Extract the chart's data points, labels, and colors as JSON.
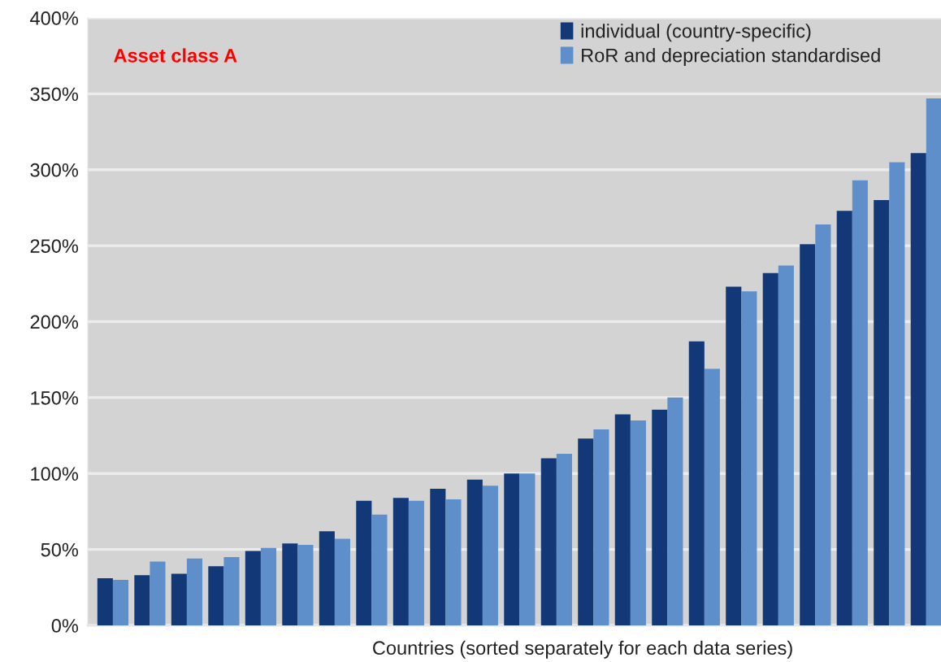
{
  "chart_data": {
    "type": "bar",
    "title": "Asset class A",
    "xlabel": "Countries (sorted separately for each data series)",
    "categories": [
      null,
      null,
      null,
      null,
      null,
      null,
      null,
      null,
      null,
      null,
      null,
      null,
      null,
      null,
      null,
      null,
      null,
      null,
      null,
      null,
      null,
      null,
      null
    ],
    "series": [
      {
        "name": "individual (country-specific)",
        "color": "#123878",
        "values": [
          31,
          33,
          34,
          39,
          49,
          54,
          62,
          82,
          84,
          90,
          96,
          100,
          110,
          123,
          139,
          142,
          187,
          223,
          232,
          251,
          273,
          280,
          311
        ]
      },
      {
        "name": "RoR and depreciation standardised",
        "color": "#5f8fca",
        "values": [
          30,
          42,
          44,
          45,
          51,
          53,
          57,
          73,
          82,
          83,
          92,
          100,
          113,
          129,
          135,
          150,
          169,
          220,
          237,
          264,
          293,
          305,
          347
        ]
      }
    ],
    "ylim": [
      0,
      400
    ],
    "yticks": [
      {
        "value": 0,
        "label": "0%"
      },
      {
        "value": 50,
        "label": "50%"
      },
      {
        "value": 100,
        "label": "100%"
      },
      {
        "value": 150,
        "label": "150%"
      },
      {
        "value": 200,
        "label": "200%"
      },
      {
        "value": 250,
        "label": "250%"
      },
      {
        "value": 300,
        "label": "300%"
      },
      {
        "value": 350,
        "label": "350%"
      },
      {
        "value": 400,
        "label": "400%"
      }
    ],
    "grid": "y",
    "legend": "top right"
  }
}
